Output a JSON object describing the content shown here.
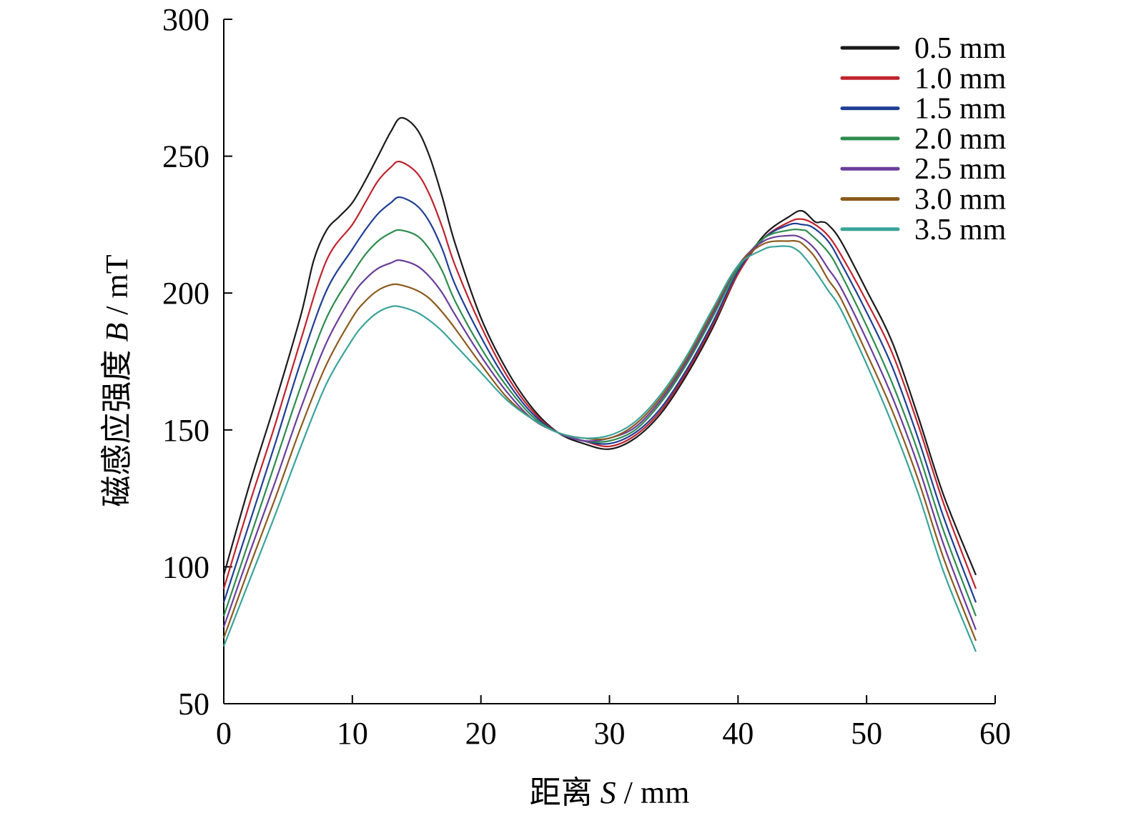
{
  "chart_data": {
    "type": "line",
    "xlabel_prefix": "距离 ",
    "xlabel_var": "S",
    "xlabel_unit": " / mm",
    "ylabel_prefix": "磁感应强度 ",
    "ylabel_var": "B",
    "ylabel_unit": " / mT",
    "xlim": [
      0,
      60
    ],
    "ylim": [
      50,
      300
    ],
    "xticks": [
      "0",
      "10",
      "20",
      "30",
      "40",
      "50",
      "60"
    ],
    "yticks": [
      "50",
      "100",
      "150",
      "200",
      "250",
      "300"
    ],
    "grid": false,
    "legend_position": "top-right",
    "series": [
      {
        "name": "0.5 mm",
        "color": "#1a1a1a",
        "x": [
          0,
          2,
          4,
          6,
          7,
          8,
          9,
          10,
          11,
          12,
          13,
          13.8,
          15,
          16,
          17,
          18,
          20,
          22,
          24,
          26,
          28,
          30,
          32,
          34,
          36,
          38,
          40,
          42,
          44,
          45,
          46,
          46.5,
          47,
          48,
          50,
          52,
          54,
          56,
          58.5
        ],
        "y": [
          97,
          130,
          160,
          192,
          212,
          223,
          228,
          233,
          241,
          250,
          259,
          264,
          260,
          250,
          235,
          218,
          191,
          172,
          158,
          149,
          145,
          143,
          147,
          156,
          170,
          187,
          207,
          221,
          228,
          230,
          226,
          226,
          225,
          219,
          201,
          182,
          155,
          126,
          97
        ]
      },
      {
        "name": "1.0 mm",
        "color": "#c0232d",
        "x": [
          0,
          2,
          4,
          6,
          8,
          10,
          11,
          12,
          13,
          13.7,
          15,
          16,
          17,
          18,
          20,
          22,
          24,
          26,
          28,
          30,
          32,
          34,
          36,
          38,
          40,
          42,
          44,
          45,
          46,
          47,
          48,
          50,
          52,
          54,
          56,
          58.5
        ],
        "y": [
          92,
          123,
          152,
          183,
          212,
          225,
          233,
          241,
          246,
          248,
          244,
          236,
          224,
          210,
          188,
          170,
          157,
          149,
          146,
          144,
          148,
          157,
          171,
          188,
          207,
          220,
          226,
          227,
          225,
          221,
          214,
          197,
          178,
          152,
          123,
          92
        ]
      },
      {
        "name": "1.5 mm",
        "color": "#1f3f94",
        "x": [
          0,
          2,
          4,
          6,
          8,
          10,
          11,
          12,
          13,
          13.7,
          15,
          16,
          17,
          18,
          20,
          22,
          24,
          26,
          28,
          30,
          32,
          34,
          36,
          38,
          40,
          42,
          44,
          45,
          45.8,
          47,
          48,
          50,
          52,
          54,
          56,
          58.5
        ],
        "y": [
          87,
          116,
          145,
          175,
          201,
          216,
          223,
          229,
          233,
          235,
          232,
          226,
          216,
          203,
          184,
          168,
          156,
          149,
          146,
          145,
          149,
          158,
          172,
          189,
          208,
          220,
          225,
          225,
          224,
          219,
          211,
          193,
          173,
          147,
          118,
          87
        ]
      },
      {
        "name": "2.0 mm",
        "color": "#2e8b4e",
        "x": [
          0,
          2,
          4,
          6,
          8,
          10,
          11,
          12,
          13,
          13.7,
          15,
          16,
          17,
          18,
          20,
          22,
          24,
          26,
          28,
          30,
          32,
          34,
          36,
          38,
          40,
          42,
          44,
          45,
          45.5,
          47,
          48,
          50,
          52,
          54,
          56,
          58.5
        ],
        "y": [
          82,
          110,
          138,
          166,
          191,
          207,
          214,
          219,
          222,
          223,
          221,
          216,
          208,
          197,
          180,
          166,
          155,
          149,
          146,
          146,
          150,
          160,
          174,
          191,
          209,
          220,
          223,
          223,
          222,
          215,
          207,
          188,
          167,
          142,
          113,
          82
        ]
      },
      {
        "name": "2.5 mm",
        "color": "#6a3d9a",
        "x": [
          0,
          2,
          4,
          6,
          8,
          10,
          11,
          12,
          13,
          13.7,
          15,
          16,
          17,
          18,
          20,
          22,
          24,
          26,
          28,
          30,
          32,
          34,
          36,
          38,
          40,
          42,
          44,
          45,
          46,
          47,
          48,
          50,
          52,
          54,
          56,
          58.5
        ],
        "y": [
          78,
          105,
          131,
          158,
          182,
          199,
          205,
          209,
          211,
          212,
          210,
          206,
          200,
          192,
          177,
          164,
          154,
          149,
          146,
          147,
          151,
          161,
          175,
          192,
          210,
          219,
          221,
          220,
          216,
          209,
          202,
          183,
          162,
          137,
          108,
          77
        ]
      },
      {
        "name": "3.0 mm",
        "color": "#8b5a1e",
        "x": [
          0,
          2,
          4,
          6,
          8,
          10,
          11,
          12,
          13,
          13.7,
          15,
          16,
          17,
          18,
          20,
          22,
          24,
          26,
          28,
          30,
          32,
          34,
          36,
          38,
          40,
          42,
          44,
          44.5,
          45,
          46,
          47,
          48,
          50,
          52,
          54,
          56,
          58.5
        ],
        "y": [
          74,
          100,
          125,
          151,
          174,
          191,
          197,
          201,
          203,
          203,
          201,
          198,
          193,
          187,
          174,
          162,
          154,
          149,
          147,
          147,
          152,
          162,
          176,
          193,
          210,
          218,
          219,
          219,
          218,
          213,
          205,
          198,
          178,
          157,
          132,
          103,
          73
        ]
      },
      {
        "name": "3.5 mm",
        "color": "#3aa39a",
        "x": [
          0,
          2,
          4,
          6,
          8,
          10,
          11,
          12,
          13,
          13.7,
          15,
          16,
          17,
          18,
          20,
          22,
          24,
          26,
          28,
          30,
          32,
          34,
          36,
          38,
          40,
          42,
          43,
          44,
          44.5,
          45,
          46,
          47,
          48,
          50,
          52,
          54,
          56,
          58.5
        ],
        "y": [
          71,
          95,
          119,
          144,
          167,
          183,
          189,
          193,
          195,
          195,
          193,
          190,
          186,
          181,
          171,
          161,
          154,
          149,
          147,
          148,
          153,
          163,
          177,
          194,
          210,
          216,
          217,
          217,
          216,
          214,
          208,
          201,
          194,
          174,
          152,
          127,
          98,
          69
        ]
      }
    ]
  }
}
